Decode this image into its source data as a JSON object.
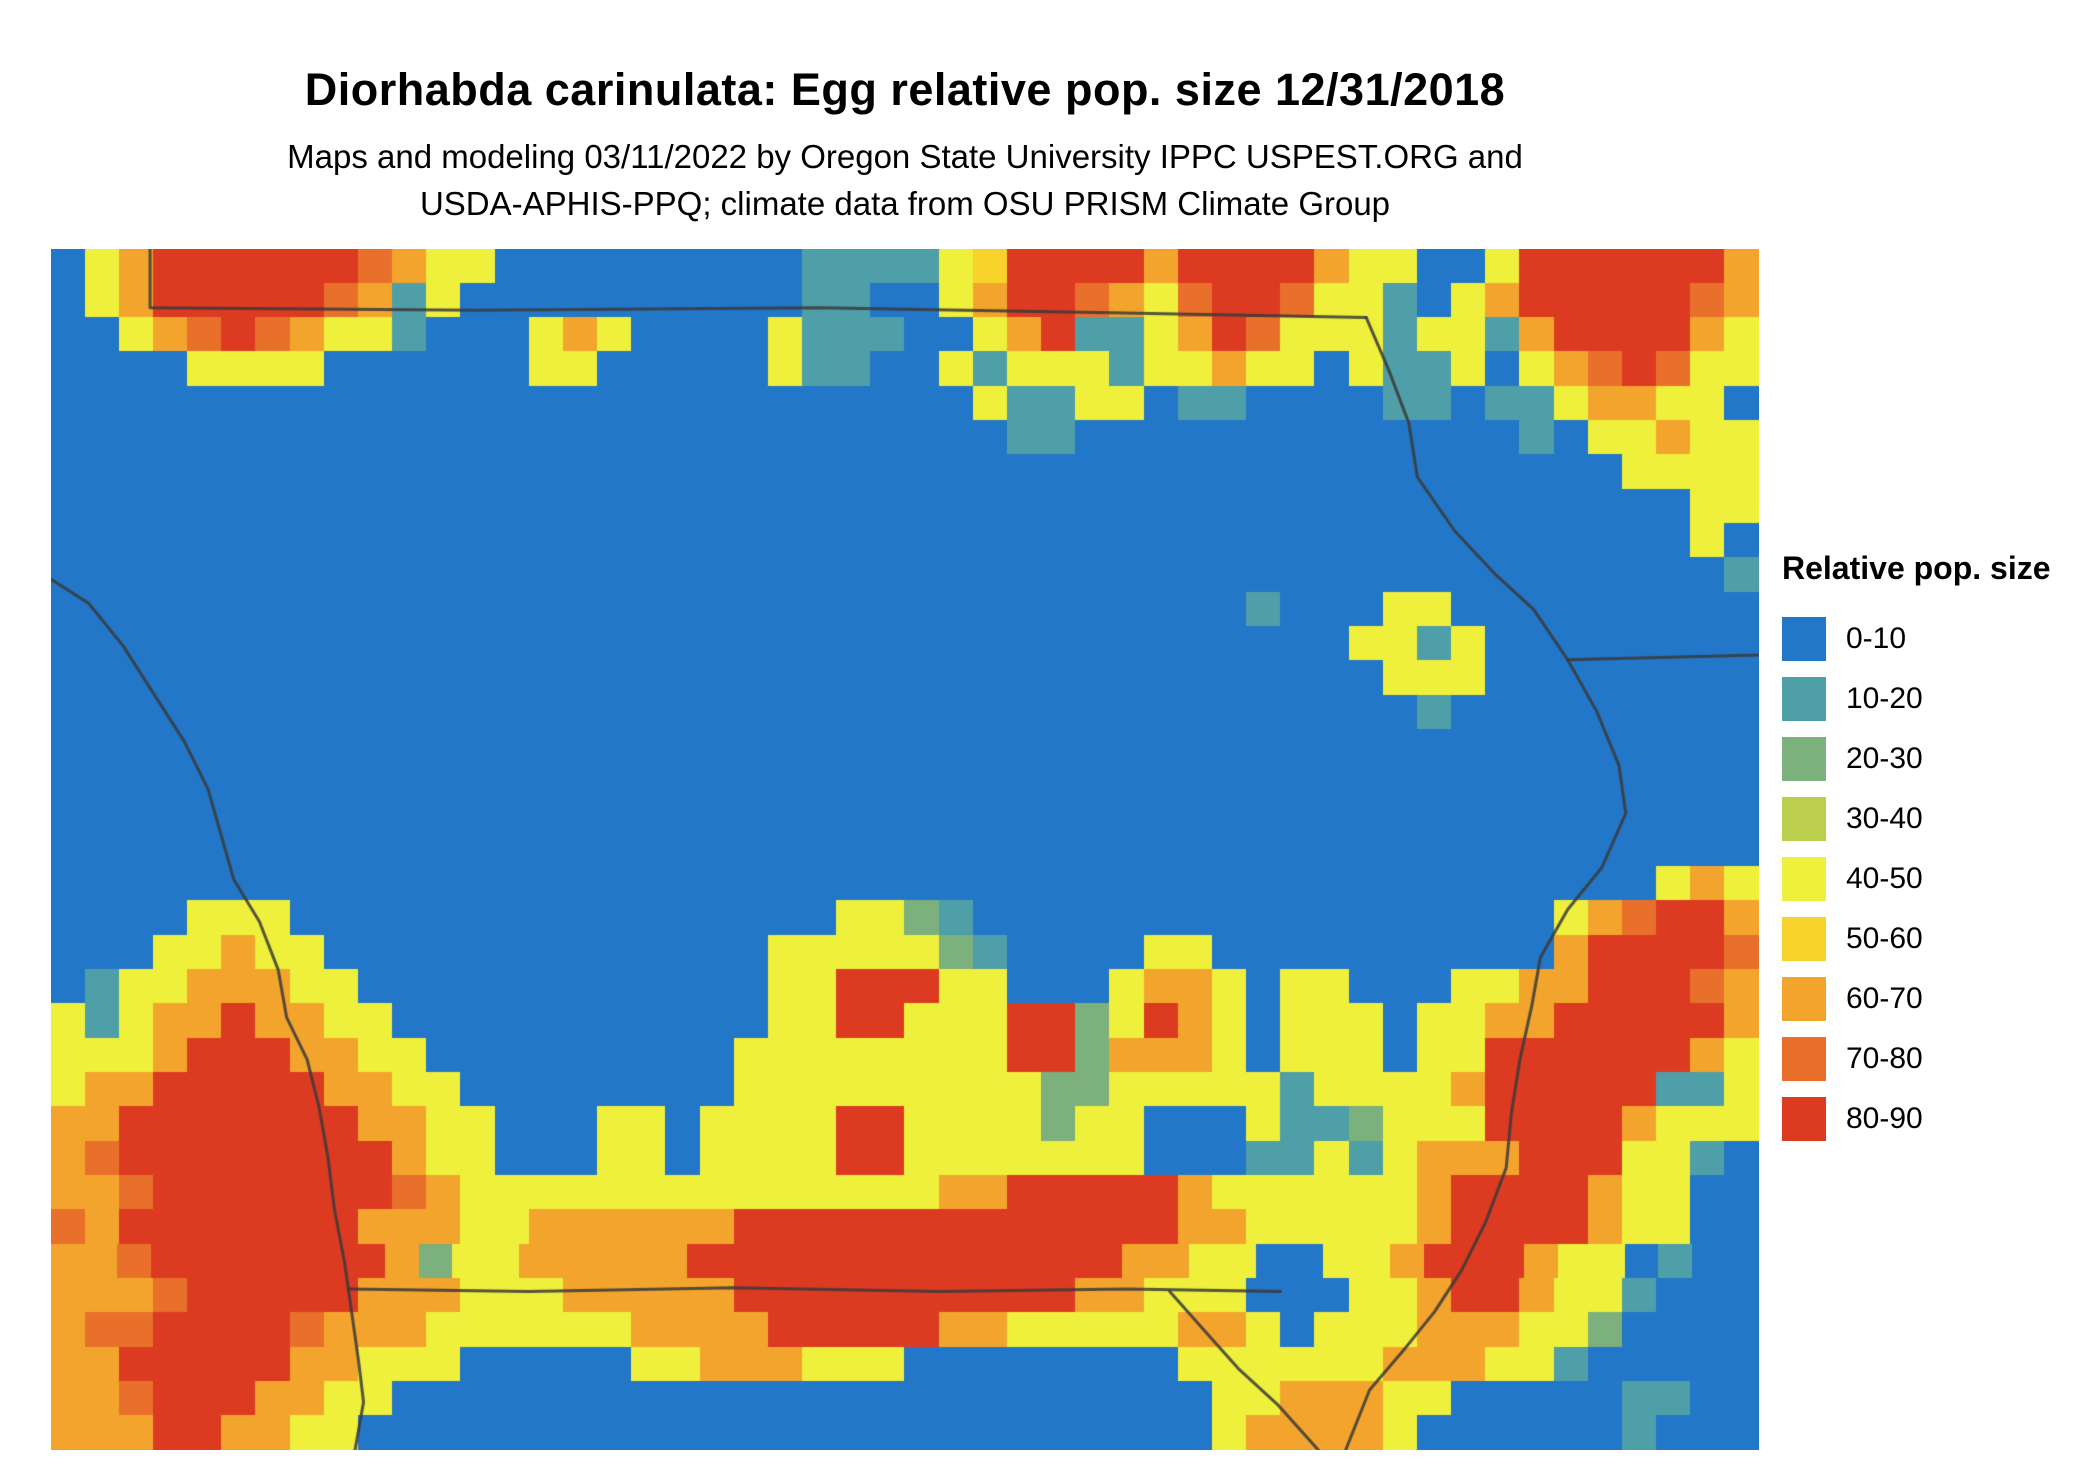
{
  "header": {
    "title": "Diorhabda carinulata: Egg relative pop. size 12/31/2018",
    "subtitle_line1": "Maps and modeling 03/11/2022 by Oregon State University IPPC USPEST.ORG and",
    "subtitle_line2": "USDA-APHIS-PPQ; climate data from OSU PRISM Climate Group"
  },
  "legend": {
    "title": "Relative pop. size",
    "entries": [
      {
        "label": "0-10",
        "color": "#2377c8"
      },
      {
        "label": "10-20",
        "color": "#4f9fa8"
      },
      {
        "label": "20-30",
        "color": "#7cb07c"
      },
      {
        "label": "30-40",
        "color": "#bccf4d"
      },
      {
        "label": "40-50",
        "color": "#eff03c"
      },
      {
        "label": "50-60",
        "color": "#f7d32b"
      },
      {
        "label": "60-70",
        "color": "#f2a42d"
      },
      {
        "label": "70-80",
        "color": "#e9702a"
      },
      {
        "label": "80-90",
        "color": "#dc3b22"
      }
    ]
  },
  "map": {
    "background_color": "#2377c8",
    "boundary_color": "#3a3a3a",
    "grid": [
      ".468888887644.........111145888868888644..48888886",
      ".46888887614..........11..46887647887441.468888876",
      "..467876441...464....4111..46811468744414416888864",
      "....4444......44.....411..41444144644.4114.4678744",
      "...........................41144.11....11.1146644.",
      "............................11.............1.44644",
      "..............................................4444",
      "................................................44",
      "................................................4.",
      ".................................................1",
      "...................................1...44.........",
      "......................................4414........",
      ".......................................444........",
      "........................................1.........",
      "..................................................",
      "..................................................",
      "..................................................",
      "..................................................",
      "...............................................464",
      "....444................4421.................467886",
      "...44644.............4444421....44..........688887",
      ".14466644............4488844...4664.44...446688876",
      "4146686644...........44884448824864.444.4466888886",
      "44468886644.........444444448826664.444.4488888864",
      "466888886644........444444444224444414444688888114",
      "6688888886644...44.4444884444244...411244488886444",
      "6788888888644...44.4444884444444...11414666888441.",
      "667888888876444444444444446688888644444468888644..",
      "768888888666446666668888888888888664444468888644..",
      "667888888862446666688888888888886644..446888644 1..",
      "66678888866644466666888888888866444...446886441...",
      "677888876664444446666888886644444664.444666442....",
      "668888866444.....44666444........444444666441.....",
      "6678886644........................4466644.....11..",
      "666886644.........................466664......1..."
    ],
    "boundaries": [
      {
        "name": "north-border",
        "points": [
          [
            0.058,
            0.0
          ],
          [
            0.058,
            0.049
          ],
          [
            0.25,
            0.051
          ],
          [
            0.45,
            0.049
          ],
          [
            0.62,
            0.053
          ],
          [
            0.77,
            0.057
          ]
        ]
      },
      {
        "name": "east-river",
        "points": [
          [
            0.77,
            0.057
          ],
          [
            0.783,
            0.1
          ],
          [
            0.795,
            0.145
          ],
          [
            0.8,
            0.19
          ],
          [
            0.822,
            0.235
          ],
          [
            0.845,
            0.27
          ],
          [
            0.868,
            0.3
          ],
          [
            0.888,
            0.342
          ],
          [
            0.905,
            0.385
          ],
          [
            0.918,
            0.43
          ],
          [
            0.922,
            0.47
          ],
          [
            0.908,
            0.515
          ],
          [
            0.888,
            0.55
          ],
          [
            0.872,
            0.59
          ],
          [
            0.867,
            0.63
          ],
          [
            0.86,
            0.675
          ],
          [
            0.855,
            0.72
          ],
          [
            0.852,
            0.765
          ],
          [
            0.84,
            0.81
          ],
          [
            0.826,
            0.85
          ],
          [
            0.81,
            0.885
          ],
          [
            0.793,
            0.915
          ],
          [
            0.772,
            0.95
          ],
          [
            0.758,
            1.0
          ]
        ]
      },
      {
        "name": "state-line-east",
        "points": [
          [
            0.888,
            0.342
          ],
          [
            1.0,
            0.338
          ]
        ]
      },
      {
        "name": "west-river",
        "points": [
          [
            0.0,
            0.275
          ],
          [
            0.022,
            0.295
          ],
          [
            0.042,
            0.33
          ],
          [
            0.06,
            0.37
          ],
          [
            0.078,
            0.41
          ],
          [
            0.092,
            0.45
          ],
          [
            0.1,
            0.49
          ],
          [
            0.107,
            0.525
          ],
          [
            0.122,
            0.56
          ],
          [
            0.133,
            0.6
          ],
          [
            0.138,
            0.64
          ],
          [
            0.15,
            0.675
          ],
          [
            0.157,
            0.715
          ],
          [
            0.162,
            0.755
          ],
          [
            0.166,
            0.8
          ],
          [
            0.172,
            0.845
          ],
          [
            0.176,
            0.885
          ],
          [
            0.18,
            0.925
          ],
          [
            0.183,
            0.96
          ],
          [
            0.178,
            1.0
          ]
        ]
      },
      {
        "name": "south-border",
        "points": [
          [
            0.174,
            0.866
          ],
          [
            0.28,
            0.868
          ],
          [
            0.4,
            0.865
          ],
          [
            0.52,
            0.868
          ],
          [
            0.63,
            0.866
          ],
          [
            0.72,
            0.868
          ]
        ]
      },
      {
        "name": "southeast-river",
        "points": [
          [
            0.655,
            0.868
          ],
          [
            0.675,
            0.9
          ],
          [
            0.695,
            0.932
          ],
          [
            0.718,
            0.962
          ],
          [
            0.742,
            1.0
          ]
        ]
      }
    ]
  }
}
